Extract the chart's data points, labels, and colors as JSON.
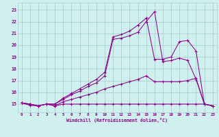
{
  "xlabel": "Windchill (Refroidissement éolien,°C)",
  "bg_color": "#cff0ee",
  "grid_color": "#aacfcc",
  "line_color": "#880088",
  "xlim": [
    -0.5,
    23.5
  ],
  "ylim": [
    14.3,
    23.6
  ],
  "xticks": [
    0,
    1,
    2,
    3,
    4,
    5,
    6,
    7,
    8,
    9,
    10,
    11,
    12,
    13,
    14,
    15,
    16,
    17,
    18,
    19,
    20,
    21,
    22,
    23
  ],
  "yticks": [
    15,
    16,
    17,
    18,
    19,
    20,
    21,
    22,
    23
  ],
  "series": [
    [
      15.1,
      14.9,
      14.85,
      15.0,
      14.85,
      15.0,
      15.0,
      15.0,
      15.0,
      15.0,
      15.0,
      15.0,
      15.0,
      15.0,
      15.0,
      15.0,
      15.0,
      15.0,
      15.0,
      15.0,
      15.0,
      15.0,
      15.0,
      14.85
    ],
    [
      15.1,
      15.0,
      14.85,
      15.0,
      14.85,
      15.2,
      15.4,
      15.6,
      15.8,
      16.0,
      16.3,
      16.5,
      16.7,
      16.9,
      17.1,
      17.4,
      16.9,
      16.9,
      16.9,
      16.9,
      17.0,
      17.2,
      15.0,
      14.85
    ],
    [
      15.1,
      15.0,
      14.85,
      15.0,
      15.0,
      15.4,
      15.8,
      16.1,
      16.5,
      16.8,
      17.4,
      20.5,
      20.6,
      20.8,
      21.1,
      22.0,
      22.85,
      18.6,
      18.7,
      18.9,
      18.7,
      17.1,
      15.0,
      14.85
    ],
    [
      15.1,
      15.0,
      14.85,
      15.0,
      15.0,
      15.5,
      15.9,
      16.3,
      16.7,
      17.1,
      17.7,
      20.7,
      20.9,
      21.2,
      21.7,
      22.3,
      18.8,
      18.8,
      19.0,
      20.3,
      20.4,
      19.5,
      15.0,
      14.85
    ]
  ]
}
